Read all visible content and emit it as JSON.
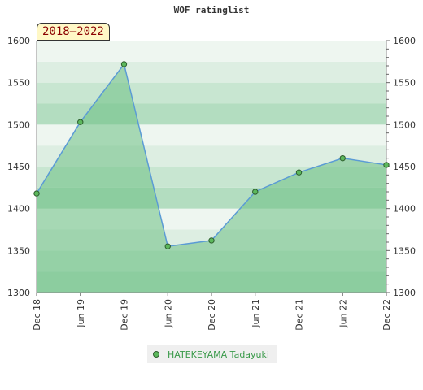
{
  "chart_data": {
    "type": "area",
    "title": "WOF ratinglist",
    "period": "2018–2022",
    "categories": [
      "Dec 18",
      "Jun 19",
      "Dec 19",
      "Jun 20",
      "Dec 20",
      "Jun 21",
      "Dec 21",
      "Jun 22",
      "Dec 22"
    ],
    "series": [
      {
        "name": "HATEKEYAMA Tadayuki",
        "values": [
          1418,
          1503,
          1572,
          1355,
          1362,
          1420,
          1443,
          1460,
          1452
        ]
      }
    ],
    "ylim": [
      1300,
      1600
    ],
    "yticks": [
      1300,
      1350,
      1400,
      1450,
      1500,
      1550,
      1600
    ],
    "grid": true,
    "legend_position": "bottom",
    "colors": {
      "line": "#5b9bd5",
      "area": "#6cbf84",
      "marker_fill": "#5cb85c",
      "marker_stroke": "#2d5d2d",
      "band_dark": "#b3ddc0",
      "band_mid": "#c8e6d1",
      "band_light": "#ddeee2",
      "band_lightest": "#eef6f0"
    }
  }
}
